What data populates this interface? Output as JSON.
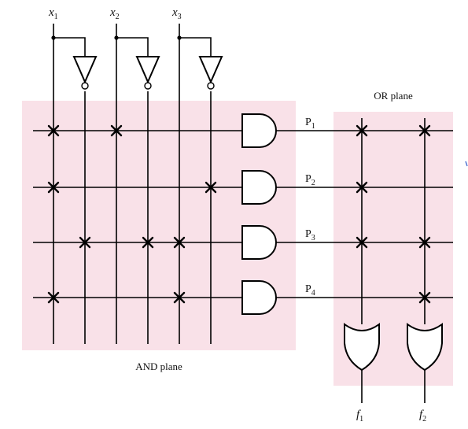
{
  "diagram": {
    "inputs": [
      {
        "name": "x",
        "sub": "1"
      },
      {
        "name": "x",
        "sub": "2"
      },
      {
        "name": "x",
        "sub": "3"
      }
    ],
    "products": [
      {
        "name": "P",
        "sub": "1"
      },
      {
        "name": "P",
        "sub": "2"
      },
      {
        "name": "P",
        "sub": "3"
      },
      {
        "name": "P",
        "sub": "4"
      }
    ],
    "outputs": [
      {
        "name": "f",
        "sub": "1"
      },
      {
        "name": "f",
        "sub": "2"
      }
    ],
    "and_plane_label": "AND plane",
    "or_plane_label": "OR plane",
    "plane_color": "#f9e1e8",
    "and_connections": [
      [
        true,
        false,
        true,
        false,
        false,
        false
      ],
      [
        true,
        false,
        false,
        false,
        false,
        true
      ],
      [
        false,
        true,
        false,
        true,
        true,
        false
      ],
      [
        true,
        false,
        false,
        false,
        true,
        false
      ]
    ],
    "and_columns": [
      "x1",
      "x1-bar",
      "x2",
      "x2-bar",
      "x3",
      "x3-bar"
    ],
    "or_connections": [
      [
        true,
        true
      ],
      [
        true,
        false
      ],
      [
        true,
        true
      ],
      [
        false,
        true
      ]
    ]
  }
}
